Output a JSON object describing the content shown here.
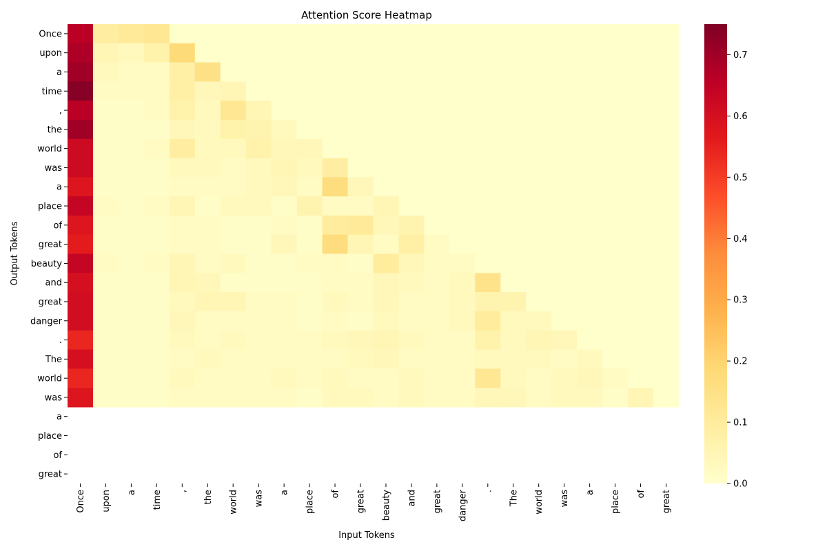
{
  "chart_data": {
    "type": "heatmap",
    "title": "Attention Score Heatmap",
    "xlabel": "Input Tokens",
    "ylabel": "Output Tokens",
    "x_tokens": [
      "Once",
      "upon",
      "a",
      "time",
      ",",
      "the",
      "world",
      "was",
      "a",
      "place",
      "of",
      "great",
      "beauty",
      "and",
      "great",
      "danger",
      ".",
      "The",
      "world",
      "was",
      "a",
      "place",
      "of",
      "great"
    ],
    "y_tokens": [
      "Once",
      "upon",
      "a",
      "time",
      ",",
      "the",
      "world",
      "was",
      "a",
      "place",
      "of",
      "great",
      "beauty",
      "and",
      "great",
      "danger",
      ".",
      "The",
      "world",
      "was",
      "a",
      "place",
      "of",
      "great"
    ],
    "colormap": "YlOrRd",
    "colorbar": {
      "range": [
        0,
        0.75
      ],
      "ticks": [
        "0.0",
        "0.1",
        "0.2",
        "0.3",
        "0.4",
        "0.5",
        "0.6",
        "0.7"
      ]
    },
    "values": [
      [
        0.66,
        0.09,
        0.11,
        0.12,
        0,
        0,
        0,
        0,
        0,
        0,
        0,
        0,
        0,
        0,
        0,
        0,
        0,
        0,
        0,
        0,
        0,
        0,
        0,
        0
      ],
      [
        0.68,
        0.05,
        0.03,
        0.07,
        0.18,
        0,
        0,
        0,
        0,
        0,
        0,
        0,
        0,
        0,
        0,
        0,
        0,
        0,
        0,
        0,
        0,
        0,
        0,
        0
      ],
      [
        0.7,
        0.03,
        0.02,
        0.02,
        0.08,
        0.15,
        0,
        0,
        0,
        0,
        0,
        0,
        0,
        0,
        0,
        0,
        0,
        0,
        0,
        0,
        0,
        0,
        0,
        0
      ],
      [
        0.74,
        0.02,
        0.02,
        0.02,
        0.08,
        0.04,
        0.05,
        0,
        0,
        0,
        0,
        0,
        0,
        0,
        0,
        0,
        0,
        0,
        0,
        0,
        0,
        0,
        0,
        0
      ],
      [
        0.66,
        0.01,
        0.01,
        0.02,
        0.07,
        0.03,
        0.12,
        0.05,
        0,
        0,
        0,
        0,
        0,
        0,
        0,
        0,
        0,
        0,
        0,
        0,
        0,
        0,
        0,
        0
      ],
      [
        0.7,
        0.01,
        0.01,
        0.01,
        0.04,
        0.03,
        0.07,
        0.06,
        0.03,
        0,
        0,
        0,
        0,
        0,
        0,
        0,
        0,
        0,
        0,
        0,
        0,
        0,
        0,
        0
      ],
      [
        0.62,
        0.01,
        0.01,
        0.02,
        0.09,
        0.03,
        0.03,
        0.07,
        0.04,
        0.04,
        0,
        0,
        0,
        0,
        0,
        0,
        0,
        0,
        0,
        0,
        0,
        0,
        0,
        0
      ],
      [
        0.62,
        0.01,
        0.01,
        0.01,
        0.03,
        0.03,
        0.02,
        0.03,
        0.05,
        0.03,
        0.09,
        0,
        0,
        0,
        0,
        0,
        0,
        0,
        0,
        0,
        0,
        0,
        0,
        0
      ],
      [
        0.58,
        0.01,
        0.01,
        0.01,
        0.02,
        0.02,
        0.02,
        0.03,
        0.04,
        0.02,
        0.17,
        0.04,
        0,
        0,
        0,
        0,
        0,
        0,
        0,
        0,
        0,
        0,
        0,
        0
      ],
      [
        0.64,
        0.02,
        0.01,
        0.02,
        0.05,
        0.01,
        0.03,
        0.03,
        0.01,
        0.06,
        0.02,
        0.02,
        0.05,
        0,
        0,
        0,
        0,
        0,
        0,
        0,
        0,
        0,
        0,
        0
      ],
      [
        0.58,
        0.01,
        0.01,
        0.01,
        0.02,
        0.02,
        0.01,
        0.01,
        0.02,
        0.01,
        0.1,
        0.11,
        0.04,
        0.06,
        0,
        0,
        0,
        0,
        0,
        0,
        0,
        0,
        0,
        0
      ],
      [
        0.56,
        0.01,
        0.01,
        0.01,
        0.02,
        0.02,
        0.01,
        0.01,
        0.04,
        0.01,
        0.17,
        0.05,
        0.02,
        0.08,
        0.02,
        0,
        0,
        0,
        0,
        0,
        0,
        0,
        0,
        0
      ],
      [
        0.64,
        0.02,
        0.01,
        0.02,
        0.05,
        0.02,
        0.03,
        0.01,
        0.01,
        0.02,
        0.02,
        0.01,
        0.1,
        0.04,
        0.02,
        0.02,
        0,
        0,
        0,
        0,
        0,
        0,
        0,
        0
      ],
      [
        0.6,
        0.01,
        0.01,
        0.01,
        0.05,
        0.04,
        0.01,
        0.01,
        0.01,
        0.01,
        0.02,
        0.02,
        0.04,
        0.03,
        0.02,
        0.03,
        0.14,
        0,
        0,
        0,
        0,
        0,
        0,
        0
      ],
      [
        0.61,
        0.01,
        0.01,
        0.01,
        0.03,
        0.05,
        0.05,
        0.02,
        0.02,
        0.01,
        0.03,
        0.02,
        0.04,
        0.02,
        0.02,
        0.03,
        0.06,
        0.06,
        0,
        0,
        0,
        0,
        0,
        0
      ],
      [
        0.61,
        0.01,
        0.01,
        0.01,
        0.04,
        0.02,
        0.02,
        0.02,
        0.02,
        0.01,
        0.02,
        0.01,
        0.03,
        0.02,
        0.02,
        0.03,
        0.1,
        0.03,
        0.03,
        0,
        0,
        0,
        0,
        0
      ],
      [
        0.54,
        0.01,
        0.01,
        0.01,
        0.03,
        0.02,
        0.03,
        0.02,
        0.02,
        0.02,
        0.03,
        0.04,
        0.05,
        0.03,
        0.02,
        0.02,
        0.07,
        0.03,
        0.05,
        0.04,
        0,
        0,
        0,
        0
      ],
      [
        0.6,
        0.01,
        0.01,
        0.01,
        0.02,
        0.03,
        0.02,
        0.02,
        0.02,
        0.02,
        0.02,
        0.03,
        0.04,
        0.02,
        0.02,
        0.02,
        0.03,
        0.03,
        0.03,
        0.02,
        0.03,
        0,
        0,
        0
      ],
      [
        0.54,
        0.01,
        0.01,
        0.01,
        0.03,
        0.02,
        0.02,
        0.02,
        0.03,
        0.02,
        0.03,
        0.02,
        0.02,
        0.03,
        0.02,
        0.02,
        0.12,
        0.03,
        0.02,
        0.03,
        0.04,
        0.02,
        0,
        0
      ],
      [
        0.58,
        0.01,
        0.01,
        0.01,
        0.02,
        0.02,
        0.02,
        0.02,
        0.02,
        0.01,
        0.03,
        0.03,
        0.02,
        0.03,
        0.02,
        0.02,
        0.04,
        0.04,
        0.02,
        0.03,
        0.03,
        0.01,
        0.05,
        0
      ],
      [
        null,
        null,
        null,
        null,
        null,
        null,
        null,
        null,
        null,
        null,
        null,
        null,
        null,
        null,
        null,
        null,
        null,
        null,
        null,
        null,
        null,
        null,
        null,
        null
      ],
      [
        null,
        null,
        null,
        null,
        null,
        null,
        null,
        null,
        null,
        null,
        null,
        null,
        null,
        null,
        null,
        null,
        null,
        null,
        null,
        null,
        null,
        null,
        null,
        null
      ],
      [
        null,
        null,
        null,
        null,
        null,
        null,
        null,
        null,
        null,
        null,
        null,
        null,
        null,
        null,
        null,
        null,
        null,
        null,
        null,
        null,
        null,
        null,
        null,
        null
      ],
      [
        null,
        null,
        null,
        null,
        null,
        null,
        null,
        null,
        null,
        null,
        null,
        null,
        null,
        null,
        null,
        null,
        null,
        null,
        null,
        null,
        null,
        null,
        null,
        null
      ]
    ]
  }
}
